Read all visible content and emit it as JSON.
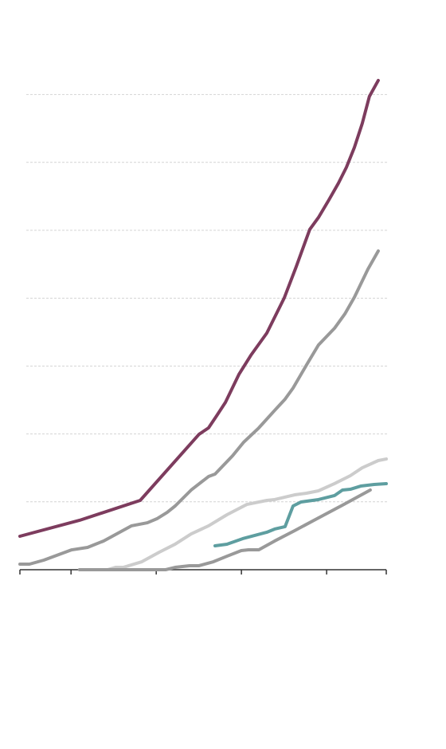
{
  "chart_data": {
    "type": "line",
    "xlim": [
      0,
      21.5
    ],
    "xticks": [
      0,
      3,
      8,
      13,
      18,
      21.5
    ],
    "ylim": [
      0,
      75
    ],
    "yticks": [
      10,
      20,
      30,
      40,
      50,
      60,
      70
    ],
    "grid": true,
    "series": [
      {
        "color": "#7d3c5e",
        "x": [
          0,
          3.5,
          7.06,
          10.51,
          11.07,
          11.54,
          12.06,
          12.85,
          13.55,
          14.49,
          15.51,
          16.21,
          17.01,
          17.52,
          18.13,
          18.69,
          19.16,
          19.63,
          20.09,
          20.51,
          21.03
        ],
        "values": [
          4.93,
          7.28,
          10.21,
          19.95,
          20.89,
          22.65,
          24.65,
          28.76,
          31.57,
          34.86,
          40.02,
          44.6,
          50.12,
          51.88,
          54.46,
          56.92,
          59.27,
          62.21,
          65.73,
          69.72,
          72.07
        ]
      },
      {
        "color": "#999999",
        "x": [
          0,
          0.56,
          1.4,
          3.04,
          3.97,
          4.91,
          6.54,
          7.48,
          8.04,
          8.64,
          9.11,
          10.05,
          11.07,
          11.45,
          12.48,
          13.13,
          14.02,
          14.95,
          15.56,
          16.03,
          16.82,
          17.52,
          18.46,
          19.07,
          19.63,
          20.42,
          21.03
        ],
        "values": [
          0.82,
          0.82,
          1.41,
          2.93,
          3.29,
          4.23,
          6.46,
          6.92,
          7.51,
          8.45,
          9.39,
          11.74,
          13.73,
          14.08,
          16.78,
          18.78,
          20.89,
          23.47,
          25.12,
          26.76,
          30.16,
          33.1,
          35.56,
          37.68,
          40.14,
          44.25,
          46.95
        ]
      },
      {
        "color": "#cccccc",
        "x": [
          3.5,
          5.14,
          5.61,
          6.07,
          7.15,
          8.18,
          9.11,
          10.05,
          11.07,
          12.15,
          13.32,
          14.49,
          14.95,
          16.12,
          16.82,
          17.52,
          18.46,
          19.39,
          20.09,
          21.03,
          21.5
        ],
        "values": [
          0,
          0,
          0.35,
          0.35,
          1.17,
          2.58,
          3.76,
          5.28,
          6.46,
          8.1,
          9.62,
          10.21,
          10.33,
          11.03,
          11.27,
          11.62,
          12.68,
          13.85,
          15.02,
          16.08,
          16.31
        ]
      },
      {
        "color": "#999999",
        "x": [
          3.5,
          8.55,
          9.11,
          9.95,
          10.51,
          11.35,
          12.15,
          12.99,
          13.41,
          14.02,
          14.95,
          16.12,
          17.52,
          18.93,
          20.56
        ],
        "values": [
          0,
          0,
          0.35,
          0.59,
          0.59,
          1.17,
          1.99,
          2.82,
          2.93,
          2.93,
          4.23,
          5.75,
          7.63,
          9.51,
          11.74
        ]
      },
      {
        "color": "#5e9ea0",
        "x": [
          11.45,
          12.15,
          13.08,
          14.49,
          14.95,
          15.56,
          16.03,
          16.5,
          17.52,
          18.46,
          18.93,
          19.39,
          20.0,
          20.79,
          21.5
        ],
        "values": [
          3.52,
          3.76,
          4.58,
          5.52,
          5.99,
          6.34,
          9.39,
          9.98,
          10.33,
          10.92,
          11.74,
          11.85,
          12.32,
          12.56,
          12.68
        ]
      }
    ]
  }
}
